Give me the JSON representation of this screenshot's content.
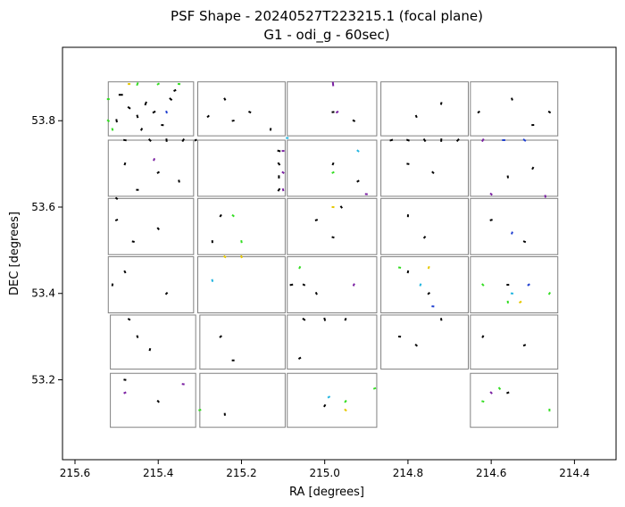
{
  "chart_data": {
    "type": "scatter",
    "title": "PSF Shape - 20240527T223215.1 (focal plane)",
    "subtitle": "G1 - odi_g - 60sec)",
    "xlabel": "RA [degrees]",
    "ylabel": "DEC [degrees]",
    "xlim": [
      215.63,
      214.3
    ],
    "ylim": [
      53.015,
      53.97
    ],
    "x_ticks": [
      "215.6",
      "215.4",
      "215.2",
      "215.0",
      "214.8",
      "214.6",
      "214.4"
    ],
    "y_ticks": [
      "53.2",
      "53.4",
      "53.6",
      "53.8"
    ],
    "x_tick_values": [
      215.6,
      215.4,
      215.2,
      215.0,
      214.8,
      214.6,
      214.4
    ],
    "y_tick_values": [
      53.2,
      53.4,
      53.6,
      53.8
    ],
    "grid": false,
    "legend": "none",
    "chips": [
      {
        "ra": [
          215.52,
          215.315
        ],
        "dec": [
          53.89,
          53.765
        ]
      },
      {
        "ra": [
          215.305,
          215.095
        ],
        "dec": [
          53.89,
          53.765
        ]
      },
      {
        "ra": [
          215.09,
          214.875
        ],
        "dec": [
          53.89,
          53.765
        ]
      },
      {
        "ra": [
          214.865,
          214.655
        ],
        "dec": [
          53.89,
          53.765
        ]
      },
      {
        "ra": [
          214.65,
          214.44
        ],
        "dec": [
          53.89,
          53.765
        ]
      },
      {
        "ra": [
          215.52,
          215.315
        ],
        "dec": [
          53.755,
          53.625
        ]
      },
      {
        "ra": [
          215.305,
          215.095
        ],
        "dec": [
          53.755,
          53.625
        ]
      },
      {
        "ra": [
          215.09,
          214.875
        ],
        "dec": [
          53.755,
          53.625
        ]
      },
      {
        "ra": [
          214.865,
          214.655
        ],
        "dec": [
          53.755,
          53.625
        ]
      },
      {
        "ra": [
          214.65,
          214.44
        ],
        "dec": [
          53.755,
          53.625
        ]
      },
      {
        "ra": [
          215.52,
          215.315
        ],
        "dec": [
          53.62,
          53.49
        ]
      },
      {
        "ra": [
          215.305,
          215.095
        ],
        "dec": [
          53.62,
          53.49
        ]
      },
      {
        "ra": [
          215.09,
          214.875
        ],
        "dec": [
          53.62,
          53.49
        ]
      },
      {
        "ra": [
          214.865,
          214.655
        ],
        "dec": [
          53.62,
          53.49
        ]
      },
      {
        "ra": [
          214.65,
          214.44
        ],
        "dec": [
          53.62,
          53.49
        ]
      },
      {
        "ra": [
          215.52,
          215.315
        ],
        "dec": [
          53.485,
          53.355
        ]
      },
      {
        "ra": [
          215.305,
          215.095
        ],
        "dec": [
          53.485,
          53.355
        ]
      },
      {
        "ra": [
          215.09,
          214.875
        ],
        "dec": [
          53.485,
          53.355
        ]
      },
      {
        "ra": [
          214.865,
          214.655
        ],
        "dec": [
          53.485,
          53.355
        ]
      },
      {
        "ra": [
          214.65,
          214.44
        ],
        "dec": [
          53.485,
          53.355
        ]
      },
      {
        "ra": [
          215.515,
          215.31
        ],
        "dec": [
          53.35,
          53.225
        ]
      },
      {
        "ra": [
          215.3,
          215.095
        ],
        "dec": [
          53.35,
          53.225
        ]
      },
      {
        "ra": [
          215.09,
          214.875
        ],
        "dec": [
          53.35,
          53.225
        ]
      },
      {
        "ra": [
          214.865,
          214.655
        ],
        "dec": [
          53.35,
          53.225
        ]
      },
      {
        "ra": [
          214.65,
          214.44
        ],
        "dec": [
          53.35,
          53.225
        ]
      },
      {
        "ra": [
          215.515,
          215.31
        ],
        "dec": [
          53.215,
          53.09
        ]
      },
      {
        "ra": [
          215.3,
          215.095
        ],
        "dec": [
          53.215,
          53.09
        ]
      },
      {
        "ra": [
          215.09,
          214.875
        ],
        "dec": [
          53.215,
          53.09
        ]
      },
      {
        "ra": [
          214.65,
          214.44
        ],
        "dec": [
          53.215,
          53.09
        ]
      }
    ],
    "series": [
      {
        "color": "#000000",
        "points": [
          [
            215.49,
            53.86,
            0.04
          ],
          [
            215.47,
            53.83,
            0.03
          ],
          [
            215.45,
            53.81,
            0.03
          ],
          [
            215.43,
            53.84,
            0.035
          ],
          [
            215.41,
            53.82,
            0.03
          ],
          [
            215.39,
            53.79,
            0.025
          ],
          [
            215.37,
            53.85,
            0.03
          ],
          [
            215.5,
            53.8,
            0.03
          ],
          [
            215.44,
            53.78,
            0.02
          ],
          [
            215.36,
            53.87,
            0.02
          ],
          [
            215.48,
            53.755,
            0.03
          ],
          [
            215.42,
            53.755,
            0.03
          ],
          [
            215.38,
            53.755,
            0.03
          ],
          [
            215.34,
            53.755,
            0.03
          ],
          [
            215.31,
            53.755,
            0.02
          ],
          [
            215.11,
            53.73,
            0.03
          ],
          [
            215.11,
            53.7,
            0.03
          ],
          [
            215.11,
            53.67,
            0.03
          ],
          [
            215.11,
            53.64,
            0.03
          ],
          [
            214.84,
            53.755,
            0.03
          ],
          [
            214.8,
            53.755,
            0.03
          ],
          [
            214.76,
            53.755,
            0.03
          ],
          [
            214.72,
            53.755,
            0.03
          ],
          [
            214.68,
            53.755,
            0.03
          ],
          [
            215.22,
            53.8,
            0.01
          ],
          [
            215.18,
            53.82,
            0.01
          ],
          [
            215.24,
            53.85,
            0.01
          ],
          [
            215.13,
            53.78,
            0.015
          ],
          [
            215.28,
            53.81,
            0.01
          ],
          [
            214.98,
            53.82,
            0.01
          ],
          [
            214.93,
            53.8,
            0.01
          ],
          [
            214.78,
            53.81,
            0.01
          ],
          [
            214.72,
            53.84,
            0.01
          ],
          [
            214.63,
            53.82,
            0.02
          ],
          [
            214.5,
            53.79,
            0.02
          ],
          [
            214.46,
            53.82,
            0.015
          ],
          [
            214.55,
            53.85,
            0.01
          ],
          [
            215.48,
            53.7,
            0.01
          ],
          [
            215.4,
            53.68,
            0.01
          ],
          [
            215.45,
            53.64,
            0.02
          ],
          [
            215.5,
            53.62,
            0.015
          ],
          [
            215.35,
            53.66,
            0.01
          ],
          [
            214.98,
            53.7,
            0.01
          ],
          [
            214.92,
            53.66,
            0.01
          ],
          [
            214.8,
            53.7,
            0.01
          ],
          [
            214.74,
            53.68,
            0.01
          ],
          [
            214.56,
            53.67,
            0.02
          ],
          [
            214.5,
            53.69,
            0.01
          ],
          [
            215.5,
            53.57,
            0.02
          ],
          [
            215.46,
            53.52,
            0.01
          ],
          [
            215.4,
            53.55,
            0.01
          ],
          [
            215.27,
            53.52,
            0.02
          ],
          [
            215.25,
            53.58,
            0.01
          ],
          [
            215.02,
            53.57,
            0.02
          ],
          [
            214.98,
            53.53,
            0.01
          ],
          [
            214.96,
            53.6,
            0.015
          ],
          [
            214.8,
            53.58,
            0.01
          ],
          [
            214.76,
            53.53,
            0.02
          ],
          [
            214.6,
            53.57,
            0.01
          ],
          [
            214.52,
            53.52,
            0.01
          ],
          [
            215.48,
            53.45,
            0.01
          ],
          [
            215.51,
            53.42,
            0.015
          ],
          [
            215.38,
            53.4,
            0.01
          ],
          [
            215.08,
            53.42,
            0.03
          ],
          [
            215.05,
            53.42,
            0.02
          ],
          [
            215.02,
            53.4,
            0.01
          ],
          [
            214.8,
            53.45,
            0.01
          ],
          [
            214.75,
            53.4,
            0.01
          ],
          [
            214.56,
            53.42,
            0.01
          ],
          [
            215.47,
            53.34,
            0.02
          ],
          [
            215.45,
            53.3,
            0.015
          ],
          [
            215.42,
            53.27,
            0.01
          ],
          [
            215.25,
            53.3,
            0.01
          ],
          [
            215.22,
            53.245,
            0.02
          ],
          [
            215.05,
            53.34,
            0.03
          ],
          [
            215.0,
            53.34,
            0.03
          ],
          [
            214.95,
            53.34,
            0.02
          ],
          [
            215.06,
            53.25,
            0.02
          ],
          [
            214.82,
            53.3,
            0.015
          ],
          [
            214.78,
            53.28,
            0.02
          ],
          [
            214.72,
            53.34,
            0.02
          ],
          [
            214.62,
            53.3,
            0.01
          ],
          [
            214.52,
            53.28,
            0.01
          ],
          [
            215.48,
            53.2,
            0.01
          ],
          [
            215.4,
            53.15,
            0.01
          ],
          [
            215.24,
            53.12,
            0.01
          ],
          [
            215.0,
            53.14,
            0.01
          ],
          [
            214.56,
            53.17,
            0.01
          ]
        ]
      },
      {
        "color": "#33dd22",
        "points": [
          [
            215.52,
            53.85,
            0.02
          ],
          [
            215.52,
            53.8,
            0.02
          ],
          [
            215.51,
            53.78,
            0.015
          ],
          [
            215.45,
            53.885,
            0.03
          ],
          [
            215.4,
            53.885,
            0.02
          ],
          [
            215.35,
            53.885,
            0.02
          ],
          [
            215.22,
            53.58,
            0.01
          ],
          [
            215.2,
            53.52,
            0.015
          ],
          [
            215.06,
            53.46,
            0.01
          ],
          [
            214.98,
            53.68,
            0.01
          ],
          [
            214.82,
            53.46,
            0.01
          ],
          [
            214.62,
            53.42,
            0.015
          ],
          [
            214.56,
            53.38,
            0.01
          ],
          [
            214.46,
            53.4,
            0.01
          ],
          [
            214.88,
            53.18,
            0.01
          ],
          [
            214.62,
            53.15,
            0.01
          ],
          [
            214.58,
            53.18,
            0.015
          ],
          [
            214.46,
            53.13,
            0.01
          ],
          [
            214.95,
            53.15,
            0.01
          ],
          [
            215.3,
            53.13,
            0.01
          ]
        ]
      },
      {
        "color": "#7a1fa2",
        "points": [
          [
            215.1,
            53.73,
            0.02
          ],
          [
            215.1,
            53.68,
            0.02
          ],
          [
            215.1,
            53.64,
            0.02
          ],
          [
            215.41,
            53.71,
            0.015
          ],
          [
            214.97,
            53.82,
            0.01
          ],
          [
            214.9,
            53.63,
            0.02
          ],
          [
            214.6,
            53.63,
            0.02
          ],
          [
            214.47,
            53.625,
            0.02
          ],
          [
            214.93,
            53.42,
            0.01
          ],
          [
            215.48,
            53.17,
            0.01
          ],
          [
            215.34,
            53.19,
            0.01
          ],
          [
            214.6,
            53.17,
            0.01
          ],
          [
            214.98,
            53.885,
            0.04
          ],
          [
            214.62,
            53.755,
            0.03
          ]
        ]
      },
      {
        "color": "#e6c800",
        "points": [
          [
            215.47,
            53.885,
            0.015
          ],
          [
            215.24,
            53.485,
            0.02
          ],
          [
            215.2,
            53.485,
            0.02
          ],
          [
            214.75,
            53.46,
            0.01
          ],
          [
            214.53,
            53.38,
            0.01
          ],
          [
            214.98,
            53.6,
            0.01
          ],
          [
            214.95,
            53.13,
            0.01
          ]
        ]
      },
      {
        "color": "#1f3fd0",
        "points": [
          [
            214.57,
            53.755,
            0.03
          ],
          [
            214.52,
            53.755,
            0.03
          ],
          [
            215.38,
            53.82,
            0.01
          ],
          [
            214.55,
            53.54,
            0.01
          ],
          [
            214.51,
            53.42,
            0.01
          ],
          [
            214.74,
            53.37,
            0.01
          ]
        ]
      },
      {
        "color": "#22b5e0",
        "points": [
          [
            215.09,
            53.76,
            0.015
          ],
          [
            214.92,
            53.73,
            0.01
          ],
          [
            215.27,
            53.43,
            0.01
          ],
          [
            214.77,
            53.42,
            0.01
          ],
          [
            214.99,
            53.16,
            0.01
          ],
          [
            214.55,
            53.4,
            0.01
          ]
        ]
      }
    ]
  }
}
